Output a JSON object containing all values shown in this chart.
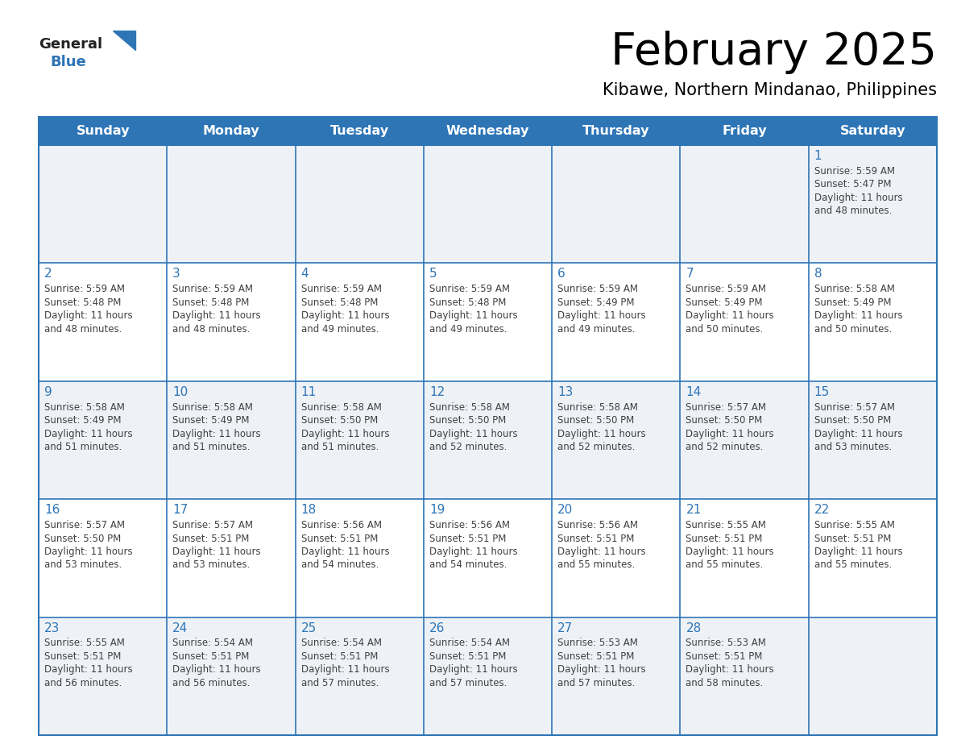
{
  "title": "February 2025",
  "subtitle": "Kibawe, Northern Mindanao, Philippines",
  "days_of_week": [
    "Sunday",
    "Monday",
    "Tuesday",
    "Wednesday",
    "Thursday",
    "Friday",
    "Saturday"
  ],
  "header_bg_color": "#2E75B6",
  "header_text_color": "#FFFFFF",
  "cell_bg_color": "#FFFFFF",
  "row0_bg_color": "#EEF2F7",
  "grid_line_color": "#2E75B6",
  "day_number_color": "#2E75B6",
  "info_text_color": "#404040",
  "logo_general_color": "#222222",
  "logo_blue_color": "#2E75B6",
  "calendar_data": [
    {
      "day": 1,
      "col": 6,
      "row": 0,
      "sunrise": "5:59 AM",
      "sunset": "5:47 PM",
      "daylight_hours": 11,
      "daylight_minutes": 48
    },
    {
      "day": 2,
      "col": 0,
      "row": 1,
      "sunrise": "5:59 AM",
      "sunset": "5:48 PM",
      "daylight_hours": 11,
      "daylight_minutes": 48
    },
    {
      "day": 3,
      "col": 1,
      "row": 1,
      "sunrise": "5:59 AM",
      "sunset": "5:48 PM",
      "daylight_hours": 11,
      "daylight_minutes": 48
    },
    {
      "day": 4,
      "col": 2,
      "row": 1,
      "sunrise": "5:59 AM",
      "sunset": "5:48 PM",
      "daylight_hours": 11,
      "daylight_minutes": 49
    },
    {
      "day": 5,
      "col": 3,
      "row": 1,
      "sunrise": "5:59 AM",
      "sunset": "5:48 PM",
      "daylight_hours": 11,
      "daylight_minutes": 49
    },
    {
      "day": 6,
      "col": 4,
      "row": 1,
      "sunrise": "5:59 AM",
      "sunset": "5:49 PM",
      "daylight_hours": 11,
      "daylight_minutes": 49
    },
    {
      "day": 7,
      "col": 5,
      "row": 1,
      "sunrise": "5:59 AM",
      "sunset": "5:49 PM",
      "daylight_hours": 11,
      "daylight_minutes": 50
    },
    {
      "day": 8,
      "col": 6,
      "row": 1,
      "sunrise": "5:58 AM",
      "sunset": "5:49 PM",
      "daylight_hours": 11,
      "daylight_minutes": 50
    },
    {
      "day": 9,
      "col": 0,
      "row": 2,
      "sunrise": "5:58 AM",
      "sunset": "5:49 PM",
      "daylight_hours": 11,
      "daylight_minutes": 51
    },
    {
      "day": 10,
      "col": 1,
      "row": 2,
      "sunrise": "5:58 AM",
      "sunset": "5:49 PM",
      "daylight_hours": 11,
      "daylight_minutes": 51
    },
    {
      "day": 11,
      "col": 2,
      "row": 2,
      "sunrise": "5:58 AM",
      "sunset": "5:50 PM",
      "daylight_hours": 11,
      "daylight_minutes": 51
    },
    {
      "day": 12,
      "col": 3,
      "row": 2,
      "sunrise": "5:58 AM",
      "sunset": "5:50 PM",
      "daylight_hours": 11,
      "daylight_minutes": 52
    },
    {
      "day": 13,
      "col": 4,
      "row": 2,
      "sunrise": "5:58 AM",
      "sunset": "5:50 PM",
      "daylight_hours": 11,
      "daylight_minutes": 52
    },
    {
      "day": 14,
      "col": 5,
      "row": 2,
      "sunrise": "5:57 AM",
      "sunset": "5:50 PM",
      "daylight_hours": 11,
      "daylight_minutes": 52
    },
    {
      "day": 15,
      "col": 6,
      "row": 2,
      "sunrise": "5:57 AM",
      "sunset": "5:50 PM",
      "daylight_hours": 11,
      "daylight_minutes": 53
    },
    {
      "day": 16,
      "col": 0,
      "row": 3,
      "sunrise": "5:57 AM",
      "sunset": "5:50 PM",
      "daylight_hours": 11,
      "daylight_minutes": 53
    },
    {
      "day": 17,
      "col": 1,
      "row": 3,
      "sunrise": "5:57 AM",
      "sunset": "5:51 PM",
      "daylight_hours": 11,
      "daylight_minutes": 53
    },
    {
      "day": 18,
      "col": 2,
      "row": 3,
      "sunrise": "5:56 AM",
      "sunset": "5:51 PM",
      "daylight_hours": 11,
      "daylight_minutes": 54
    },
    {
      "day": 19,
      "col": 3,
      "row": 3,
      "sunrise": "5:56 AM",
      "sunset": "5:51 PM",
      "daylight_hours": 11,
      "daylight_minutes": 54
    },
    {
      "day": 20,
      "col": 4,
      "row": 3,
      "sunrise": "5:56 AM",
      "sunset": "5:51 PM",
      "daylight_hours": 11,
      "daylight_minutes": 55
    },
    {
      "day": 21,
      "col": 5,
      "row": 3,
      "sunrise": "5:55 AM",
      "sunset": "5:51 PM",
      "daylight_hours": 11,
      "daylight_minutes": 55
    },
    {
      "day": 22,
      "col": 6,
      "row": 3,
      "sunrise": "5:55 AM",
      "sunset": "5:51 PM",
      "daylight_hours": 11,
      "daylight_minutes": 55
    },
    {
      "day": 23,
      "col": 0,
      "row": 4,
      "sunrise": "5:55 AM",
      "sunset": "5:51 PM",
      "daylight_hours": 11,
      "daylight_minutes": 56
    },
    {
      "day": 24,
      "col": 1,
      "row": 4,
      "sunrise": "5:54 AM",
      "sunset": "5:51 PM",
      "daylight_hours": 11,
      "daylight_minutes": 56
    },
    {
      "day": 25,
      "col": 2,
      "row": 4,
      "sunrise": "5:54 AM",
      "sunset": "5:51 PM",
      "daylight_hours": 11,
      "daylight_minutes": 57
    },
    {
      "day": 26,
      "col": 3,
      "row": 4,
      "sunrise": "5:54 AM",
      "sunset": "5:51 PM",
      "daylight_hours": 11,
      "daylight_minutes": 57
    },
    {
      "day": 27,
      "col": 4,
      "row": 4,
      "sunrise": "5:53 AM",
      "sunset": "5:51 PM",
      "daylight_hours": 11,
      "daylight_minutes": 57
    },
    {
      "day": 28,
      "col": 5,
      "row": 4,
      "sunrise": "5:53 AM",
      "sunset": "5:51 PM",
      "daylight_hours": 11,
      "daylight_minutes": 58
    }
  ]
}
